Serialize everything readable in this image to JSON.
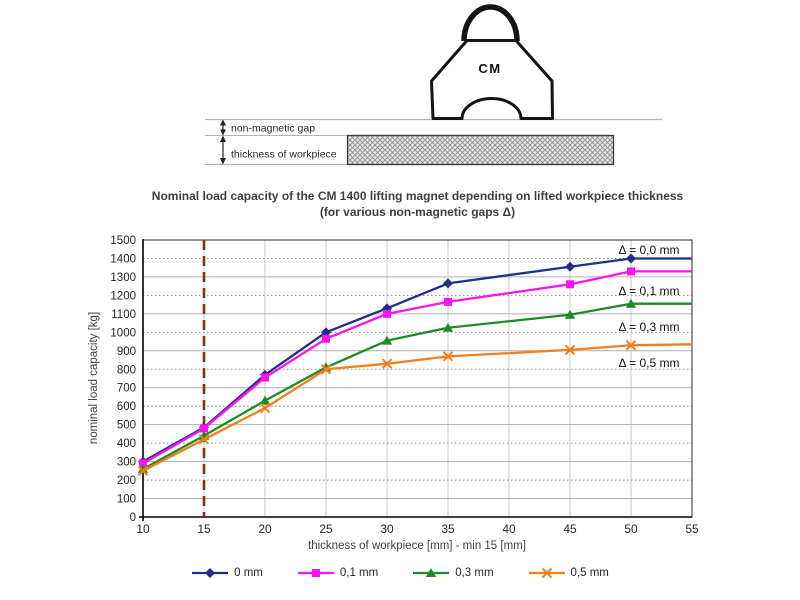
{
  "diagram": {
    "gap_label": "non-magnetic gap",
    "thickness_label": "thickness of workpiece",
    "magnet_label": "CM"
  },
  "chart_data": {
    "type": "line",
    "title": "Nominal load capacity of the CM 1400 lifting magnet depending on lifted workpiece thickness",
    "subtitle": "(for various non-magnetic gaps Δ)",
    "xlabel": "thickness of workpiece [mm] - min 15 [mm]",
    "ylabel": "nominal load capacity [kg]",
    "xlim": [
      10,
      55
    ],
    "ylim": [
      0,
      1500
    ],
    "xticks": [
      10,
      15,
      20,
      25,
      30,
      35,
      40,
      45,
      50,
      55
    ],
    "ytick_step": 100,
    "grid": true,
    "legend_position": "bottom",
    "reference_line": {
      "x": 15,
      "color": "#9E2020",
      "style": "dashed"
    },
    "x": [
      10,
      15,
      20,
      25,
      30,
      35,
      45,
      50,
      55
    ],
    "marker_x": [
      10,
      15,
      20,
      25,
      30,
      35,
      45,
      50
    ],
    "series": [
      {
        "name": "0 mm",
        "marker": "diamond",
        "color": "#232E8C",
        "annotation": {
          "label": "Δ = 0,0 mm",
          "y": 1445
        },
        "values": [
          300,
          485,
          770,
          1000,
          1130,
          1265,
          1355,
          1400,
          1400
        ]
      },
      {
        "name": "0,1 mm",
        "marker": "square",
        "color": "#FA14F0",
        "annotation": {
          "label": "Δ = 0,1 mm",
          "y": 1225
        },
        "values": [
          290,
          480,
          755,
          965,
          1100,
          1165,
          1260,
          1330,
          1330
        ]
      },
      {
        "name": "0,3 mm",
        "marker": "triangle",
        "color": "#1F8B24",
        "annotation": {
          "label": "Δ = 0,3 mm",
          "y": 1030
        },
        "values": [
          260,
          440,
          630,
          810,
          955,
          1025,
          1095,
          1155,
          1155
        ]
      },
      {
        "name": "0,5 mm",
        "marker": "x",
        "color": "#F07F1E",
        "annotation": {
          "label": "Δ = 0,5 mm",
          "y": 835
        },
        "values": [
          250,
          420,
          590,
          800,
          830,
          870,
          905,
          930,
          935
        ]
      }
    ]
  }
}
